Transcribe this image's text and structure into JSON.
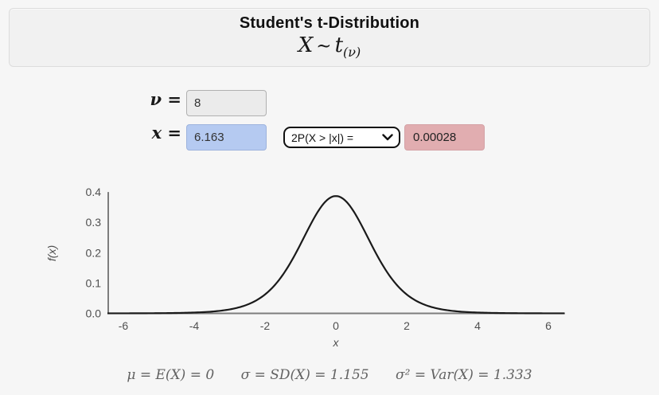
{
  "header": {
    "title": "Student's t-Distribution",
    "formula": {
      "lhs": "X",
      "sim": "∼",
      "dist": "t",
      "sub": "(ν)"
    }
  },
  "controls": {
    "nu_label": "ν =",
    "nu_value": "8",
    "x_label": "x =",
    "x_value": "6.163",
    "probability_select": {
      "selected": "2P(X > |x|) ="
    },
    "result_value": "0.00028"
  },
  "chart_data": {
    "type": "line",
    "distribution": "student-t",
    "df": 8,
    "pdf_coefficient": 0.3867,
    "xlabel": "x",
    "ylabel": "f(x)",
    "xlim": [
      -6.45,
      6.45
    ],
    "ylim": [
      0,
      0.4
    ],
    "x_ticks": [
      "-6",
      "-4",
      "-2",
      "0",
      "2",
      "4",
      "6"
    ],
    "x_tick_values": [
      -6,
      -4,
      -2,
      0,
      2,
      4,
      6
    ],
    "y_ticks": [
      "0.0",
      "0.1",
      "0.2",
      "0.3",
      "0.4"
    ],
    "y_tick_values": [
      0.0,
      0.1,
      0.2,
      0.3,
      0.4
    ],
    "grid": false,
    "legend": null,
    "peak": {
      "x": 0,
      "y": 0.387
    },
    "sample_points": {
      "x": [
        -6,
        -5.5,
        -5,
        -4.5,
        -4,
        -3.5,
        -3,
        -2.5,
        -2,
        -1.5,
        -1,
        -0.5,
        0,
        0.5,
        1,
        1.5,
        2,
        2.5,
        3,
        3.5,
        4,
        4.5,
        5,
        5.5,
        6
      ],
      "y": [
        0.00018,
        0.00034,
        0.00066,
        0.00132,
        0.00276,
        0.00592,
        0.01301,
        0.02879,
        0.06236,
        0.12722,
        0.22759,
        0.33673,
        0.3867,
        0.33673,
        0.22759,
        0.12722,
        0.06236,
        0.02879,
        0.01301,
        0.00592,
        0.00276,
        0.00132,
        0.00066,
        0.00034,
        0.00018
      ]
    },
    "colors": {
      "curve": "#1a1a1a",
      "axis": "#7d7d7d",
      "tick_text": "#4f4f4f"
    }
  },
  "footer": {
    "mean": "μ = E(X) = 0",
    "sd": "σ = SD(X) = 1.155",
    "variance": "σ² = Var(X) = 1.333"
  }
}
